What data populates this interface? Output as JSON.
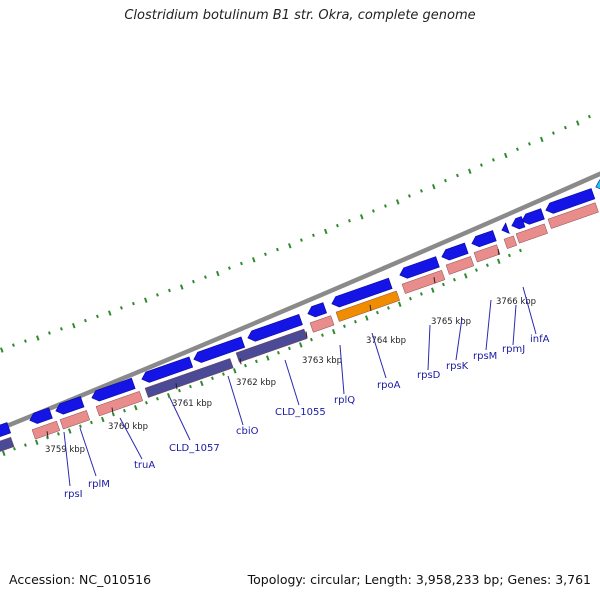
{
  "title": "Clostridium botulinum B1 str. Okra, complete genome",
  "footer": {
    "accession": "Accession: NC_010516",
    "summary": "Topology: circular; Length: 3,958,233 bp; Genes: 3,761"
  },
  "colors": {
    "background": "#ffffff",
    "backbone": "#8a8a8a",
    "cds_forward": "#1414e6",
    "cds_reverse_pink": "#e88c8c",
    "cds_reverse_purple": "#4a4a96",
    "cds_reverse_orange": "#f08c00",
    "cyan_feature": "#1ec8f0",
    "gc_ticks": "#2e8b2e",
    "label_text": "#1a1aa6"
  },
  "scale_labels": [
    "3759 kbp",
    "3760 kbp",
    "3761 kbp",
    "3762 kbp",
    "3763 kbp",
    "3764 kbp",
    "3765 kbp",
    "3766 kbp"
  ],
  "gene_labels": [
    "rpsI",
    "rplM",
    "truA",
    "CLD_1057",
    "cbiO",
    "CLD_1055",
    "rplQ",
    "rpoA",
    "rpsD",
    "rpsK",
    "rpsM",
    "rpmJ",
    "infA"
  ],
  "legend_icons": [
    "forward-cds-arrow",
    "reverse-cds-arrow",
    "gc-skew-ticks"
  ]
}
